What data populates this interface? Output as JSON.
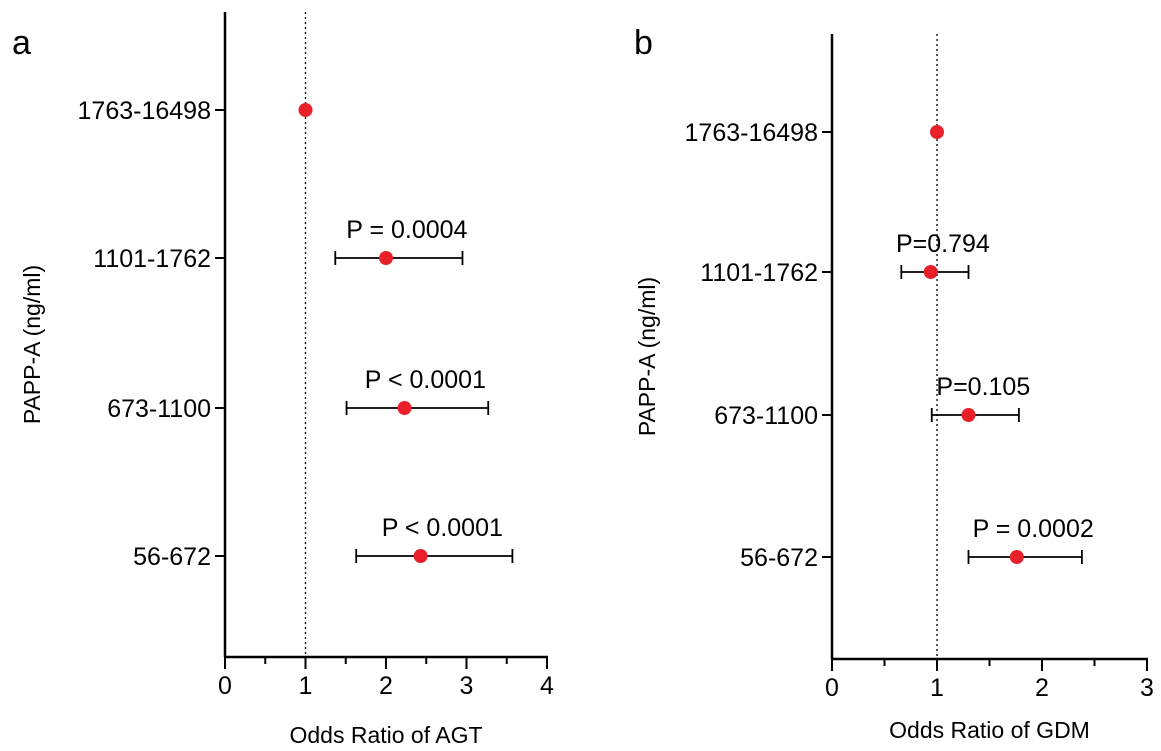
{
  "chart_data": [
    {
      "type": "forest",
      "panel_label": "a",
      "ylabel": "PAPP-A (ng/ml)",
      "xlabel": "Odds Ratio of AGT",
      "xlim": [
        0,
        4
      ],
      "xticks": [
        "0",
        "1",
        "2",
        "3",
        "4"
      ],
      "reference_line": 1,
      "grid": false,
      "point_color": "#e8202a",
      "categories": [
        "1763-16498",
        "1101-1762",
        "673-1100",
        "56-672"
      ],
      "odds_ratio": [
        1.0,
        2.0,
        2.23,
        2.43
      ],
      "ci_low": [
        null,
        1.37,
        1.51,
        1.63
      ],
      "ci_high": [
        null,
        2.95,
        3.27,
        3.57
      ],
      "p_labels": [
        "",
        "P = 0.0004",
        "P < 0.0001",
        "P < 0.0001"
      ]
    },
    {
      "type": "forest",
      "panel_label": "b",
      "ylabel": "PAPP-A (ng/ml)",
      "xlabel": "Odds Ratio of GDM",
      "xlim": [
        0,
        3
      ],
      "xticks": [
        "0",
        "1",
        "2",
        "3"
      ],
      "reference_line": 1,
      "grid": false,
      "point_color": "#e8202a",
      "categories": [
        "1763-16498",
        "1101-1762",
        "673-1100",
        "56-672"
      ],
      "odds_ratio": [
        1.0,
        0.94,
        1.3,
        1.76
      ],
      "ci_low": [
        null,
        0.66,
        0.95,
        1.3
      ],
      "ci_high": [
        null,
        1.3,
        1.78,
        2.38
      ],
      "p_labels": [
        "",
        "P=0.794",
        "P=0.105",
        "P = 0.0002"
      ]
    }
  ]
}
